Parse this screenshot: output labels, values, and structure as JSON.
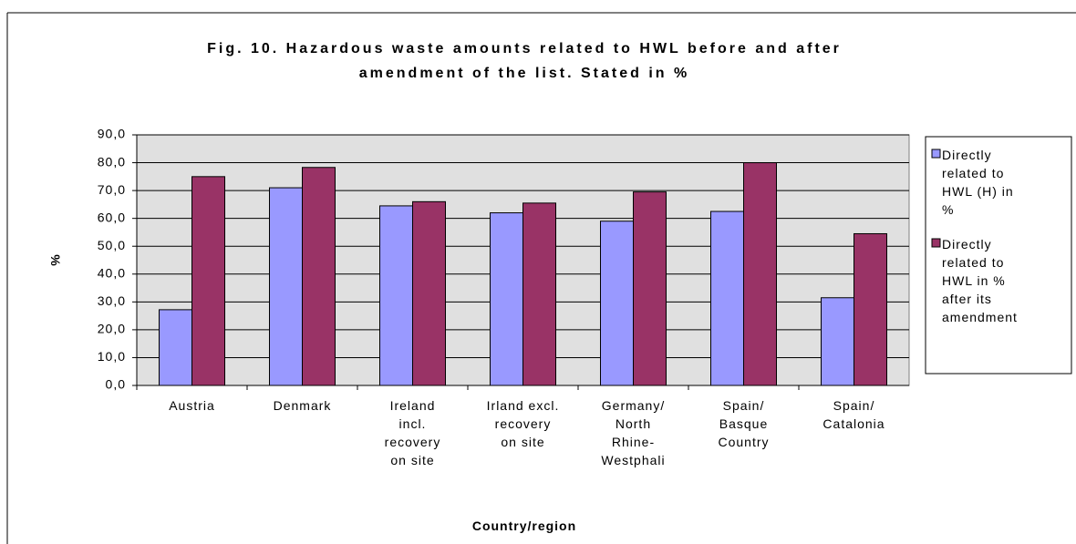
{
  "chart_data": {
    "type": "bar",
    "title": "Fig. 10. Hazardous waste amounts related to HWL before and after\namendment of the list. Stated in %",
    "x_label": "Country/region",
    "y_label": "%",
    "categories": [
      "Austria",
      "Denmark",
      "Ireland\nincl.\nrecovery\non site",
      "Irland excl.\nrecovery\non site",
      "Germany/\nNorth\nRhine-\nWestphali",
      "Spain/\nBasque\nCountry",
      "Spain/\nCatalonia"
    ],
    "series": [
      {
        "name": "Directly\nrelated to\nHWL (H) in\n%",
        "color": "#9999ff",
        "values": [
          27.2,
          71.0,
          64.5,
          62.0,
          59.0,
          62.5,
          31.5
        ]
      },
      {
        "name": "Directly\nrelated to\nHWL in %\nafter its\namendment",
        "color": "#993366",
        "values": [
          75.0,
          78.3,
          66.0,
          65.5,
          69.5,
          80.0,
          54.5
        ]
      }
    ],
    "ylim": [
      0,
      90
    ],
    "yticks": [
      {
        "value": 0,
        "label": "0,0"
      },
      {
        "value": 10,
        "label": "10,0"
      },
      {
        "value": 20,
        "label": "20,0"
      },
      {
        "value": 30,
        "label": "30,0"
      },
      {
        "value": 40,
        "label": "40,0"
      },
      {
        "value": 50,
        "label": "50,0"
      },
      {
        "value": 60,
        "label": "60,0"
      },
      {
        "value": 70,
        "label": "70,0"
      },
      {
        "value": 80,
        "label": "80,0"
      },
      {
        "value": 90,
        "label": "90,0"
      }
    ],
    "grid": true,
    "legend": "right"
  }
}
